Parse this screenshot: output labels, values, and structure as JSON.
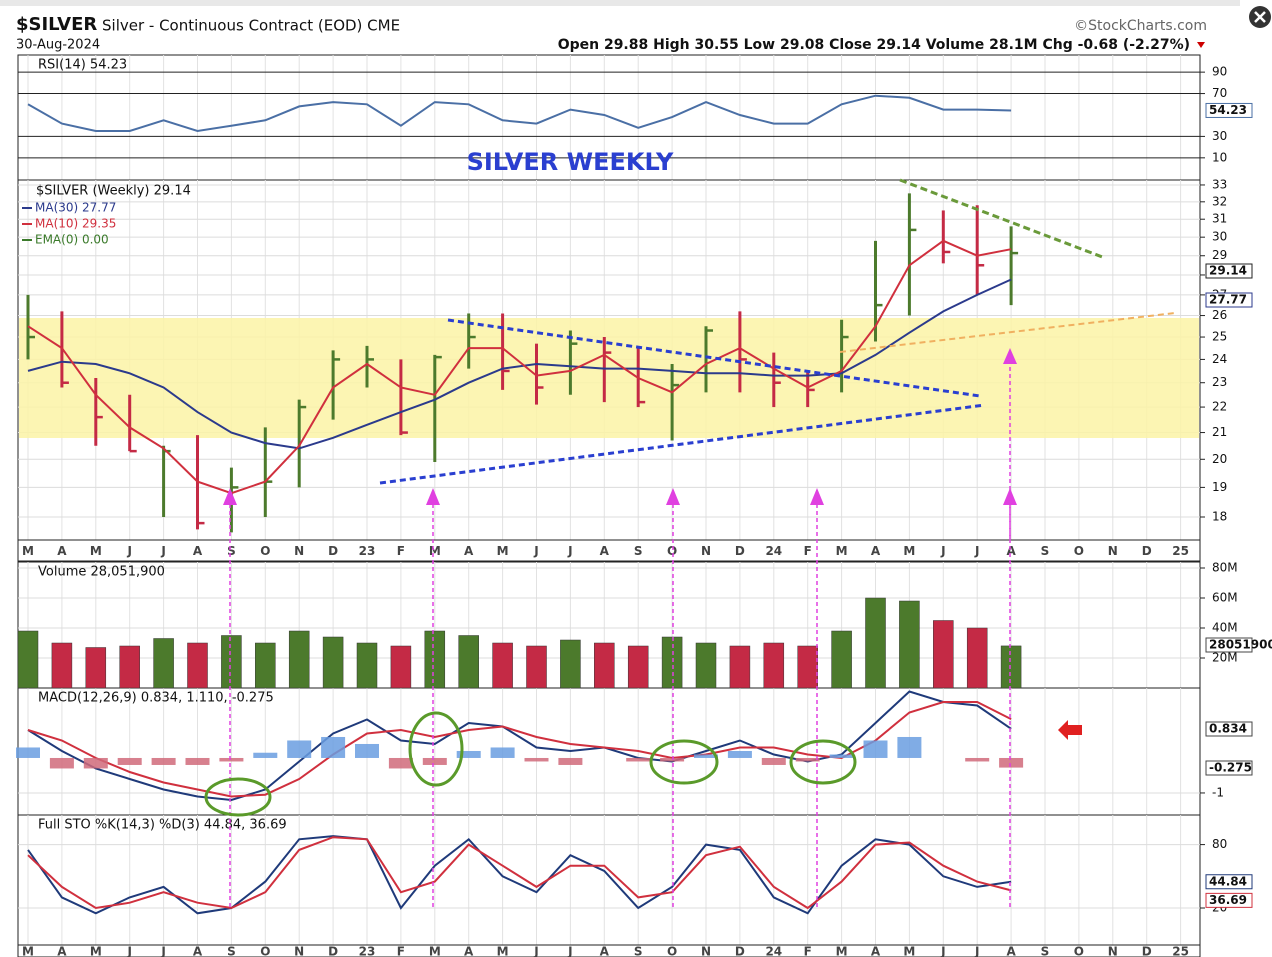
{
  "header": {
    "symbol": "$SILVER",
    "description": "Silver - Continuous Contract (EOD) CME",
    "date": "30-Aug-2024",
    "source": "©StockCharts.com",
    "quote": "Open 29.88 High 30.55 Low 29.08 Close 29.14 Volume 28.1M Chg -0.68 (-2.27%)"
  },
  "chart_data": [
    {
      "type": "line",
      "title": "RSI(14) 54.23",
      "ylim": [
        -10.7,
        106
      ],
      "yticks": [
        10,
        30,
        70,
        90
      ],
      "grid": true,
      "series": [
        {
          "color": "#4a6fa5",
          "values": [
            60,
            42,
            35,
            35,
            45,
            35,
            40,
            45,
            58,
            62,
            60,
            40,
            62,
            60,
            45,
            42,
            55,
            50,
            38,
            48,
            62,
            50,
            42,
            42,
            60,
            68,
            66,
            55,
            55,
            54.23,
            null,
            null,
            null,
            null,
            null
          ]
        }
      ]
    },
    {
      "type": "ohlc",
      "label": "$SILVER (Weekly) 29.14",
      "annotation": "SILVER WEEKLY",
      "log": true,
      "ylim": [
        17.26,
        33.3
      ],
      "yticks": [
        18,
        19,
        20,
        21,
        22,
        23,
        24,
        25,
        26,
        27,
        28,
        29,
        30,
        31,
        32,
        33
      ],
      "grid": true,
      "color_up": "#4c7a2c",
      "color_down": "#c42a45",
      "categories": [
        "M",
        "A",
        "M",
        "J",
        "J",
        "A",
        "S",
        "O",
        "N",
        "D",
        "23",
        "F",
        "M",
        "A",
        "M",
        "J",
        "J",
        "A",
        "S",
        "O",
        "N",
        "D",
        "24",
        "F",
        "M",
        "A",
        "M",
        "J",
        "J",
        "A",
        "S",
        "O",
        "N",
        "D",
        "25"
      ],
      "high": [
        27,
        26.2,
        23.2,
        22.5,
        20.5,
        20.9,
        19.7,
        21.2,
        22.3,
        24.4,
        24.6,
        24,
        24.2,
        26.1,
        26.1,
        24.7,
        25.3,
        25,
        24.5,
        23.8,
        25.5,
        26.2,
        24.3,
        23.5,
        25.8,
        29.8,
        32.5,
        31.5,
        31.8,
        30.6,
        null,
        null,
        null,
        null,
        null
      ],
      "low": [
        24,
        22.8,
        20.5,
        20.3,
        18,
        17.6,
        17.5,
        18,
        19,
        21.5,
        22.8,
        20.9,
        19.9,
        23.6,
        22.7,
        22.1,
        22.5,
        22.2,
        22,
        20.7,
        22.6,
        22.6,
        22,
        22,
        22.6,
        24.8,
        26,
        28.6,
        27,
        26.5,
        null,
        null,
        null,
        null,
        null
      ],
      "close": [
        25,
        23,
        21.6,
        20.3,
        20.3,
        17.8,
        19,
        19.2,
        22,
        24,
        24,
        21,
        24.1,
        25,
        23.5,
        22.8,
        24.7,
        24.3,
        22.2,
        22.9,
        25.3,
        24,
        23,
        22.7,
        25,
        26.5,
        30.4,
        29.2,
        28.5,
        29.14,
        null,
        null,
        null,
        null,
        null
      ],
      "series": [
        {
          "name": "MA(30) 27.77",
          "color": "#2b3a8c",
          "values": [
            23.5,
            23.9,
            23.8,
            23.4,
            22.8,
            21.8,
            21,
            20.6,
            20.4,
            20.8,
            21.3,
            21.8,
            22.3,
            23,
            23.6,
            23.8,
            23.7,
            23.6,
            23.6,
            23.5,
            23.4,
            23.4,
            23.3,
            23.3,
            23.4,
            24.2,
            25.2,
            26.2,
            27,
            27.77,
            null,
            null,
            null,
            null,
            null
          ]
        },
        {
          "name": "MA(10) 29.35",
          "color": "#d0303e",
          "values": [
            25.5,
            24.5,
            22.5,
            21.2,
            20.4,
            19.2,
            18.8,
            19.2,
            20.5,
            22.8,
            23.8,
            22.8,
            22.5,
            24.5,
            24.5,
            23.3,
            23.5,
            24.2,
            23.2,
            22.6,
            23.8,
            24.5,
            23.6,
            22.8,
            23.5,
            25.5,
            28.5,
            29.8,
            29,
            29.35,
            null,
            null,
            null,
            null,
            null
          ]
        },
        {
          "name": "EMA(0) 0.00",
          "color": "#3a7a2a"
        }
      ]
    },
    {
      "type": "bar",
      "title": "Volume 28,051,900",
      "ylim": [
        0,
        84000000
      ],
      "grid": true,
      "yticks": [
        {
          "value": 20000000,
          "label": "20M"
        },
        {
          "value": 40000000,
          "label": "40M"
        },
        {
          "value": 60000000,
          "label": "60M"
        },
        {
          "value": 80000000,
          "label": "80M"
        }
      ],
      "values": [
        38000000,
        30000000,
        27000000,
        28000000,
        33000000,
        30000000,
        35000000,
        30000000,
        38000000,
        34000000,
        30000000,
        28000000,
        38000000,
        35000000,
        30000000,
        28000000,
        32000000,
        30000000,
        28000000,
        34000000,
        30000000,
        28000000,
        30000000,
        28000000,
        38000000,
        60000000,
        58000000,
        45000000,
        40000000,
        28051900,
        null,
        null,
        null,
        null,
        null
      ]
    },
    {
      "type": "macd",
      "title": "MACD(12,26,9) 0.834, 1.110, -0.275",
      "ylim": [
        -1.63,
        2.0
      ],
      "yticks": [
        -1
      ],
      "grid": true,
      "series": [
        {
          "color": "#1f3a7a",
          "values": [
            0.8,
            0.2,
            -0.3,
            -0.6,
            -0.9,
            -1.1,
            -1.2,
            -0.9,
            -0.1,
            0.7,
            1.1,
            0.5,
            0.4,
            1.0,
            0.9,
            0.3,
            0.2,
            0.3,
            0.0,
            -0.1,
            0.2,
            0.5,
            0.1,
            -0.1,
            0.1,
            1.0,
            1.9,
            1.6,
            1.5,
            0.834,
            null,
            null,
            null,
            null,
            null
          ]
        },
        {
          "color": "#d0303e",
          "values": [
            0.8,
            0.5,
            0.0,
            -0.4,
            -0.7,
            -0.9,
            -1.1,
            -1.05,
            -0.6,
            0.1,
            0.7,
            0.8,
            0.6,
            0.8,
            0.9,
            0.6,
            0.4,
            0.3,
            0.2,
            0.0,
            0.1,
            0.3,
            0.3,
            0.1,
            0.0,
            0.5,
            1.3,
            1.6,
            1.6,
            1.11,
            null,
            null,
            null,
            null,
            null
          ]
        },
        {
          "color": "#6a9de0",
          "color_down": "#d06a7a",
          "style": "histogram",
          "values": [
            0.3,
            -0.3,
            -0.3,
            -0.2,
            -0.2,
            -0.2,
            -0.1,
            0.15,
            0.5,
            0.6,
            0.4,
            -0.3,
            -0.2,
            0.2,
            0.3,
            -0.1,
            -0.2,
            0,
            -0.1,
            -0.1,
            0.1,
            0.2,
            -0.2,
            -0.1,
            0.1,
            0.5,
            0.6,
            0,
            -0.1,
            -0.275,
            null,
            null,
            null,
            null,
            null
          ]
        }
      ]
    },
    {
      "type": "line",
      "title": "Full STO %K(14,3) %D(3) 44.84, 36.69",
      "ylim": [
        -15,
        108
      ],
      "yticks": [
        20,
        80
      ],
      "grid": true,
      "series": [
        {
          "color": "#1f3a7a",
          "values": [
            75,
            30,
            15,
            30,
            40,
            15,
            20,
            45,
            85,
            88,
            85,
            20,
            60,
            85,
            50,
            35,
            70,
            55,
            20,
            40,
            80,
            75,
            30,
            15,
            60,
            85,
            80,
            50,
            40,
            44.84,
            null,
            null,
            null,
            null,
            null
          ]
        },
        {
          "color": "#d0303e",
          "values": [
            70,
            40,
            20,
            25,
            35,
            25,
            20,
            35,
            75,
            87,
            85,
            35,
            45,
            80,
            60,
            40,
            60,
            60,
            30,
            35,
            70,
            78,
            40,
            20,
            45,
            80,
            82,
            60,
            45,
            36.69,
            null,
            null,
            null,
            null,
            null
          ]
        }
      ]
    }
  ]
}
